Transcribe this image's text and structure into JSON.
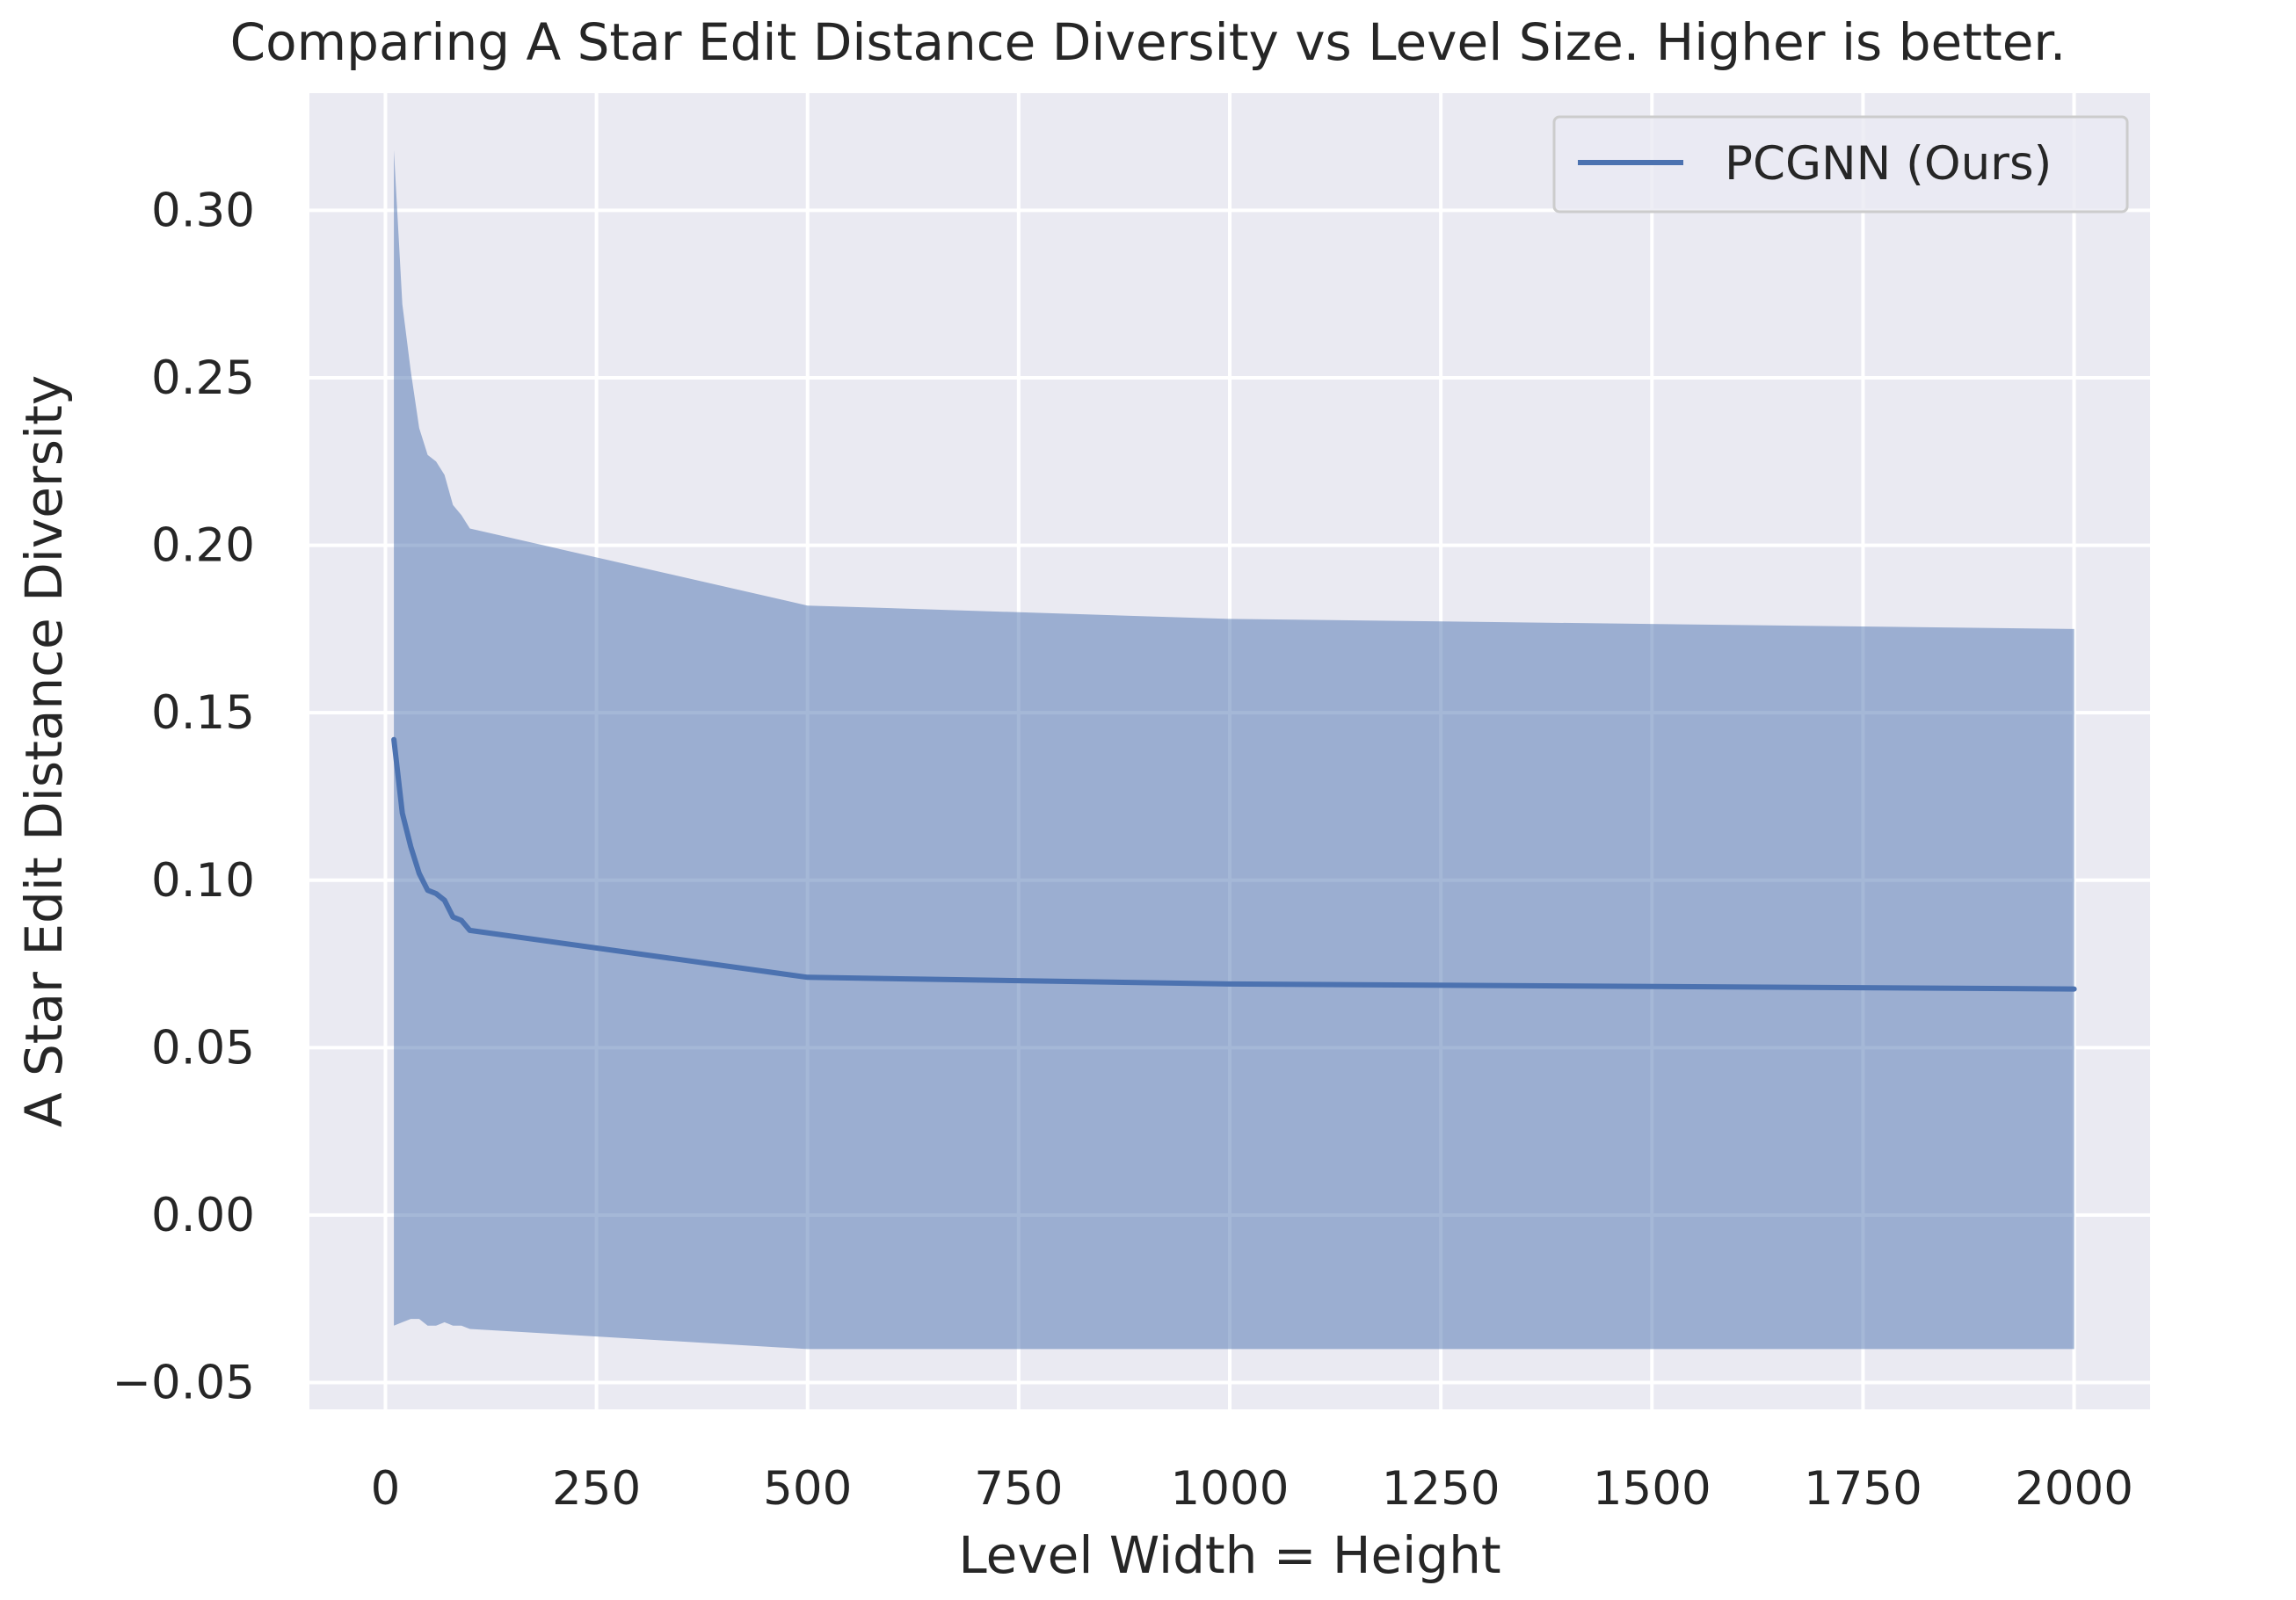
{
  "chart_data": {
    "type": "line",
    "title": "Comparing A Star Edit Distance Diversity vs Level Size. Higher is better.",
    "xlabel": "Level Width = Height",
    "ylabel": "A Star Edit Distance Diversity",
    "xlim": [
      -90,
      2090
    ],
    "ylim": [
      -0.058,
      0.335
    ],
    "xticks": [
      0,
      250,
      500,
      750,
      1000,
      1250,
      1500,
      1750,
      2000
    ],
    "yticks": [
      -0.05,
      0.0,
      0.05,
      0.1,
      0.15,
      0.2,
      0.25,
      0.3
    ],
    "xtick_labels": [
      "0",
      "250",
      "500",
      "750",
      "1000",
      "1250",
      "1500",
      "1750",
      "2000"
    ],
    "ytick_labels": [
      "−0.05",
      "0.00",
      "0.05",
      "0.10",
      "0.15",
      "0.20",
      "0.25",
      "0.30"
    ],
    "grid": true,
    "legend_position": "top-right",
    "series": [
      {
        "name": "PCGNN (Ours)",
        "color": "#4c72b0",
        "x": [
          10,
          20,
          30,
          40,
          50,
          60,
          70,
          80,
          90,
          100,
          500,
          1000,
          2000
        ],
        "y": [
          0.142,
          0.12,
          0.11,
          0.102,
          0.097,
          0.096,
          0.094,
          0.089,
          0.088,
          0.085,
          0.071,
          0.069,
          0.0675
        ],
        "upper": [
          0.318,
          0.272,
          0.252,
          0.235,
          0.227,
          0.225,
          0.221,
          0.212,
          0.209,
          0.205,
          0.182,
          0.178,
          0.175
        ],
        "lower": [
          -0.033,
          -0.032,
          -0.031,
          -0.031,
          -0.033,
          -0.033,
          -0.032,
          -0.033,
          -0.033,
          -0.034,
          -0.04,
          -0.04,
          -0.04
        ]
      }
    ]
  }
}
